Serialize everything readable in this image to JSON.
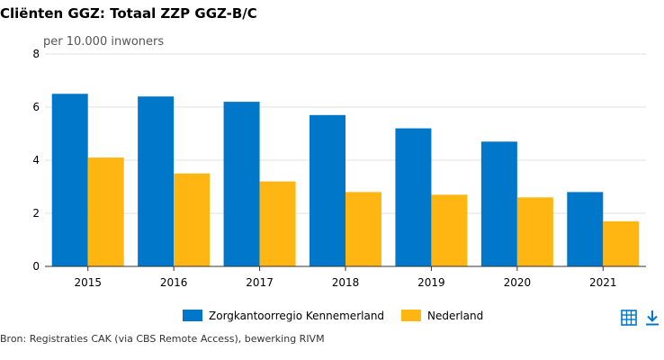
{
  "title": "Cliënten GGZ: Totaal ZZP GGZ-B/C",
  "source": "Bron: Registraties CAK (via CBS Remote Access), bewerking RIVM",
  "icons": [
    "table-icon",
    "download-icon"
  ],
  "chart_data": {
    "type": "bar",
    "title": "Cliënten GGZ: Totaal ZZP GGZ-B/C",
    "ylabel": "per 10.000 inwoners",
    "xlabel": "",
    "categories": [
      "2015",
      "2016",
      "2017",
      "2018",
      "2019",
      "2020",
      "2021"
    ],
    "series": [
      {
        "name": "Zorgkantoorregio Kennemerland",
        "color": "#0077c8",
        "values": [
          6.5,
          6.4,
          6.2,
          5.7,
          5.2,
          4.7,
          2.8
        ]
      },
      {
        "name": "Nederland",
        "color": "#ffb612",
        "values": [
          4.1,
          3.5,
          3.2,
          2.8,
          2.7,
          2.6,
          1.7
        ]
      }
    ],
    "ylim": [
      0,
      8
    ],
    "yticks": [
      "0",
      "2",
      "4",
      "6",
      "8"
    ],
    "grid": true,
    "legend": "bottom"
  }
}
